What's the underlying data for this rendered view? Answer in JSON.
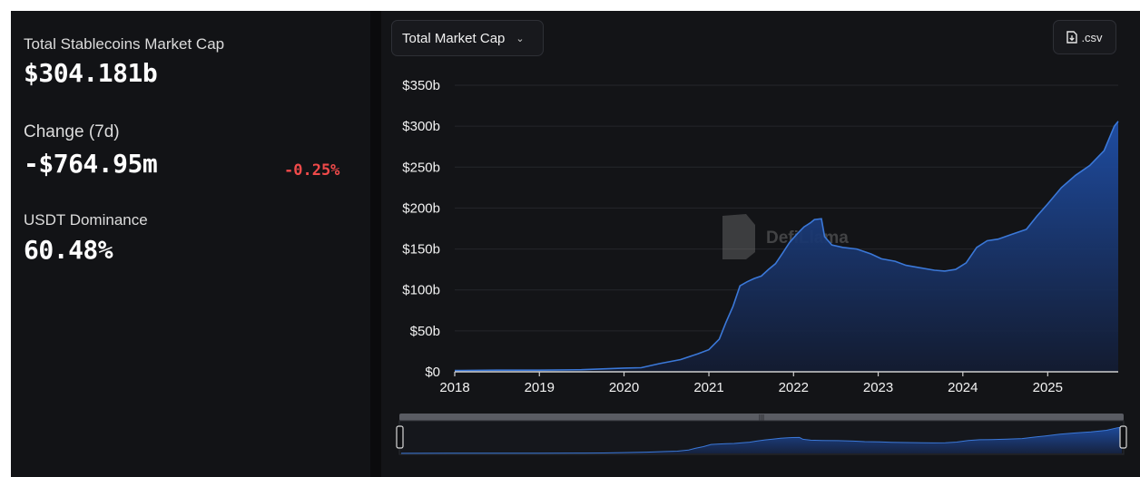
{
  "stats": {
    "market_cap_label": "Total Stablecoins Market Cap",
    "market_cap_value": "$304.181b",
    "change_label": "Change (7d)",
    "change_value": "-$764.95m",
    "change_percent": "-0.25%",
    "dominance_label": "USDT Dominance",
    "dominance_value": "60.48%"
  },
  "controls": {
    "metric_dropdown": "Total Market Cap",
    "csv_label": ".csv"
  },
  "watermark": "DefiLlama",
  "colors": {
    "accent": "#3b78d8",
    "negative": "#f04a4a",
    "panel": "#131417"
  },
  "chart_data": {
    "type": "area",
    "title": "",
    "xlabel": "",
    "ylabel": "",
    "y_ticks": [
      "$0",
      "$50b",
      "$100b",
      "$150b",
      "$200b",
      "$250b",
      "$300b",
      "$350b"
    ],
    "x_ticks": [
      "2018",
      "2019",
      "2020",
      "2021",
      "2022",
      "2023",
      "2024",
      "2025"
    ],
    "ylim": [
      0,
      350
    ],
    "grid": true,
    "legend": "none",
    "series": [
      {
        "values_unit": "billions USD",
        "x": [
          "2018-01-01",
          "2018-07-01",
          "2019-01-01",
          "2019-07-01",
          "2020-01-01",
          "2020-03-15",
          "2020-06-01",
          "2020-09-01",
          "2020-11-15",
          "2021-01-01",
          "2021-02-15",
          "2021-03-15",
          "2021-04-15",
          "2021-05-15",
          "2021-06-15",
          "2021-07-15",
          "2021-08-15",
          "2021-09-15",
          "2021-10-15",
          "2021-11-15",
          "2021-12-15",
          "2022-01-15",
          "2022-02-15",
          "2022-03-15",
          "2022-04-01",
          "2022-05-01",
          "2022-05-15",
          "2022-06-15",
          "2022-08-01",
          "2022-10-01",
          "2022-12-01",
          "2023-01-15",
          "2023-03-15",
          "2023-05-01",
          "2023-07-01",
          "2023-09-01",
          "2023-10-15",
          "2023-12-01",
          "2024-01-15",
          "2024-03-01",
          "2024-04-15",
          "2024-06-01",
          "2024-08-01",
          "2024-10-01",
          "2024-11-15",
          "2025-01-01",
          "2025-03-01",
          "2025-05-01",
          "2025-07-01",
          "2025-09-01",
          "2025-10-15",
          "2025-11-01"
        ],
        "values": [
          1.5,
          2,
          2,
          2.5,
          4.5,
          5,
          10,
          15,
          22,
          27,
          40,
          60,
          80,
          105,
          110,
          114,
          117,
          125,
          132,
          145,
          158,
          168,
          177,
          182,
          186,
          187,
          165,
          155,
          152,
          150,
          144,
          138,
          135,
          130,
          127,
          124,
          123,
          125,
          133,
          152,
          160,
          162,
          168,
          174,
          190,
          205,
          225,
          240,
          252,
          270,
          300,
          306
        ]
      }
    ]
  }
}
